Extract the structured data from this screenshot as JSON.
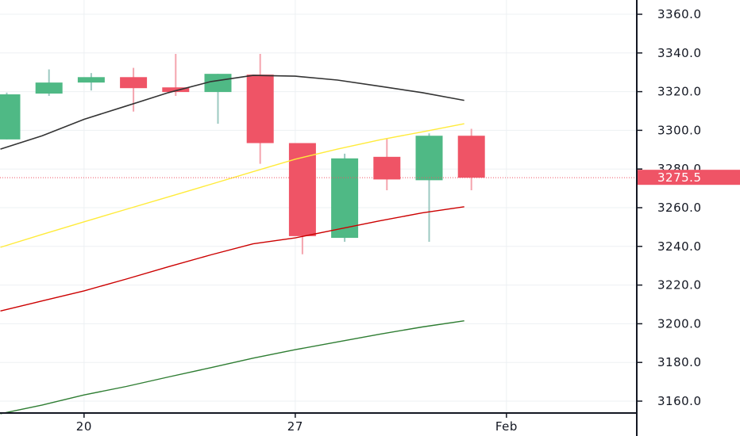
{
  "chart_data": {
    "type": "candlestick",
    "y_axis": {
      "ticks": [
        "3160.0",
        "3180.0",
        "3200.0",
        "3220.0",
        "3240.0",
        "3260.0",
        "3280.0",
        "3300.0",
        "3320.0",
        "3340.0",
        "3360.0"
      ],
      "range": [
        3151,
        3372
      ]
    },
    "x_axis": {
      "ticks": [
        {
          "label": "20",
          "pos": 1.83
        },
        {
          "label": "27",
          "pos": 6.83
        },
        {
          "label": "Feb",
          "pos": 11.83
        }
      ]
    },
    "last_price": {
      "value": 3275.5,
      "label": "3275.5",
      "color": "#ef5466"
    },
    "colors": {
      "up": "#4fb985",
      "down": "#ef5466",
      "up_wick": "#9cc9c1",
      "down_wick": "#f4a4ae",
      "grid": "#edf0f3",
      "axis": "#131722"
    },
    "candles": [
      {
        "i": 0,
        "open": 3295.3,
        "high": 3319.5,
        "low": 3295.3,
        "close": 3318.6
      },
      {
        "i": 1,
        "open": 3319.0,
        "high": 3331.5,
        "low": 3317.8,
        "close": 3324.7
      },
      {
        "i": 2,
        "open": 3324.7,
        "high": 3329.6,
        "low": 3320.6,
        "close": 3327.5
      },
      {
        "i": 3,
        "open": 3327.5,
        "high": 3332.3,
        "low": 3309.7,
        "close": 3321.8
      },
      {
        "i": 4,
        "open": 3322.2,
        "high": 3339.5,
        "low": 3317.8,
        "close": 3319.8
      },
      {
        "i": 5,
        "open": 3319.8,
        "high": 3329.2,
        "low": 3303.4,
        "close": 3329.2
      },
      {
        "i": 6,
        "open": 3328.8,
        "high": 3339.5,
        "low": 3282.7,
        "close": 3293.4
      },
      {
        "i": 7,
        "open": 3293.4,
        "high": 3293.4,
        "low": 3235.9,
        "close": 3245.3
      },
      {
        "i": 8,
        "open": 3244.4,
        "high": 3287.9,
        "low": 3242.4,
        "close": 3285.5
      },
      {
        "i": 9,
        "open": 3286.3,
        "high": 3295.9,
        "low": 3269.0,
        "close": 3274.6
      },
      {
        "i": 10,
        "open": 3274.2,
        "high": 3298.4,
        "low": 3242.4,
        "close": 3297.2
      },
      {
        "i": 11,
        "open": 3297.2,
        "high": 3300.8,
        "low": 3269.0,
        "close": 3275.5
      }
    ],
    "series": [
      {
        "color": "#333333",
        "points": [
          [
            -0.15,
            3290.3
          ],
          [
            0.84,
            3297.2
          ],
          [
            1.83,
            3305.7
          ],
          [
            2.83,
            3312.6
          ],
          [
            3.83,
            3319.5
          ],
          [
            4.83,
            3325.2
          ],
          [
            5.83,
            3328.4
          ],
          [
            6.83,
            3328.0
          ],
          [
            7.83,
            3326.0
          ],
          [
            8.83,
            3322.8
          ],
          [
            9.83,
            3319.5
          ],
          [
            10.83,
            3315.5
          ]
        ]
      },
      {
        "color": "#ffeb3b",
        "points": [
          [
            -0.15,
            3239.5
          ],
          [
            0.84,
            3246.2
          ],
          [
            1.83,
            3252.7
          ],
          [
            2.83,
            3259.2
          ],
          [
            3.83,
            3265.6
          ],
          [
            4.83,
            3272.1
          ],
          [
            5.83,
            3278.6
          ],
          [
            6.83,
            3285.1
          ],
          [
            7.83,
            3290.3
          ],
          [
            8.83,
            3295.1
          ],
          [
            9.83,
            3299.2
          ],
          [
            10.83,
            3303.4
          ]
        ]
      },
      {
        "color": "#cc0000",
        "points": [
          [
            -0.15,
            3206.6
          ],
          [
            0.84,
            3211.8
          ],
          [
            1.83,
            3217.0
          ],
          [
            2.83,
            3223.1
          ],
          [
            3.83,
            3229.5
          ],
          [
            4.83,
            3235.6
          ],
          [
            5.83,
            3241.3
          ],
          [
            6.83,
            3244.4
          ],
          [
            7.83,
            3248.8
          ],
          [
            8.83,
            3253.2
          ],
          [
            9.83,
            3257.3
          ],
          [
            10.83,
            3260.5
          ]
        ]
      },
      {
        "color": "#2e7d32",
        "points": [
          [
            -0.15,
            3153.5
          ],
          [
            0.84,
            3158.0
          ],
          [
            1.83,
            3163.2
          ],
          [
            2.83,
            3167.6
          ],
          [
            3.83,
            3172.5
          ],
          [
            4.83,
            3177.3
          ],
          [
            5.83,
            3182.2
          ],
          [
            6.83,
            3186.6
          ],
          [
            7.83,
            3190.6
          ],
          [
            8.83,
            3194.6
          ],
          [
            9.83,
            3198.3
          ],
          [
            10.83,
            3201.5
          ]
        ]
      }
    ]
  }
}
